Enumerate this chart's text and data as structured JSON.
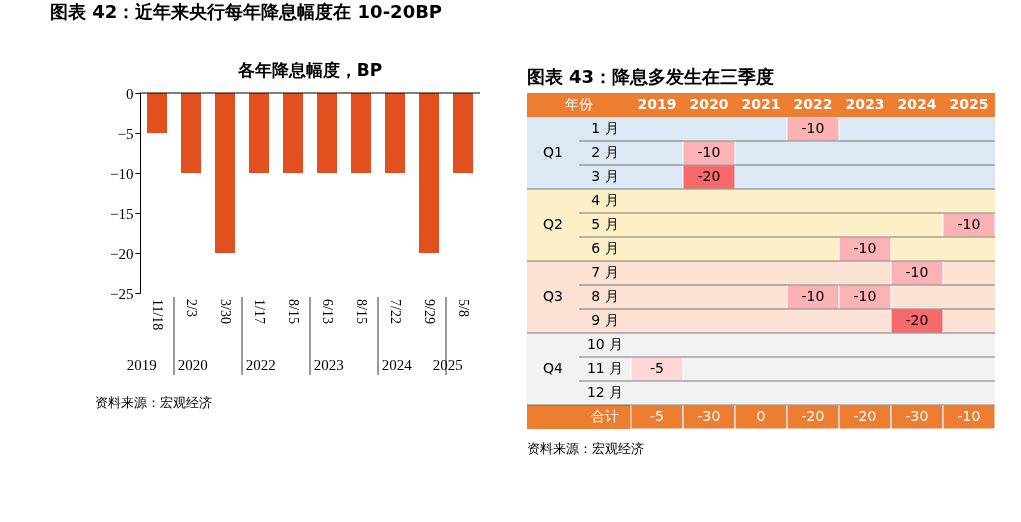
{
  "chart_data": [
    {
      "type": "bar",
      "title": "图表 42：近年来央行每年降息幅度在 10-20BP",
      "subtitle": "各年降息幅度，BP",
      "categories": [
        "11/18",
        "2/3",
        "3/30",
        "1/17",
        "8/15",
        "6/13",
        "8/15",
        "7/22",
        "9/29",
        "5/8"
      ],
      "values": [
        -5,
        -10,
        -20,
        -10,
        -10,
        -10,
        -10,
        -10,
        -20,
        -10
      ],
      "color": "#e2501f",
      "ylim": [
        -25,
        0
      ],
      "yticks": [
        0,
        -5,
        -10,
        -15,
        -20,
        -25
      ],
      "grid": false,
      "annotations": [
        "2019",
        "2020",
        "2022",
        "2023",
        "2024",
        "2025",
        "资料来源：宏观经济"
      ]
    },
    {
      "type": "heatmap",
      "title": "图表 43：降息多发生在三季度",
      "xlabel": "年份",
      "categories": [
        "2019",
        "2020",
        "2021",
        "2022",
        "2023",
        "2024",
        "2025"
      ],
      "y_categories": [
        "1 月",
        "2 月",
        "3 月",
        "4 月",
        "5 月",
        "6 月",
        "7 月",
        "8 月",
        "9 月",
        "10 月",
        "11 月",
        "12 月",
        "合计"
      ],
      "cells": [
        [
          null,
          null,
          null,
          -10,
          null,
          null,
          null
        ],
        [
          null,
          -10,
          null,
          null,
          null,
          null,
          null
        ],
        [
          null,
          -20,
          null,
          null,
          null,
          null,
          null
        ],
        [
          null,
          null,
          null,
          null,
          null,
          null,
          null
        ],
        [
          null,
          null,
          null,
          null,
          null,
          null,
          -10
        ],
        [
          null,
          null,
          null,
          null,
          -10,
          null,
          null
        ],
        [
          null,
          null,
          null,
          null,
          null,
          -10,
          null
        ],
        [
          null,
          null,
          null,
          -10,
          -10,
          null,
          null
        ],
        [
          null,
          null,
          null,
          null,
          null,
          -20,
          null
        ],
        [
          null,
          null,
          null,
          null,
          null,
          null,
          null
        ],
        [
          -5,
          null,
          null,
          null,
          null,
          null,
          null
        ],
        [
          null,
          null,
          null,
          null,
          null,
          null,
          null
        ],
        [
          -5,
          -30,
          0,
          -20,
          -20,
          -30,
          -10
        ]
      ],
      "data_labels": true,
      "bands": [
        {
          "axis": "y",
          "from": "1 月",
          "to": "3 月",
          "label": "Q1",
          "color": "#dce9f5"
        },
        {
          "axis": "y",
          "from": "4 月",
          "to": "6 月",
          "label": "Q2",
          "color": "#fdf0c9"
        },
        {
          "axis": "y",
          "from": "7 月",
          "to": "9 月",
          "label": "Q3",
          "color": "#fbe2d4"
        },
        {
          "axis": "y",
          "from": "10 月",
          "to": "12 月",
          "label": "Q4",
          "color": "#f2f2f2"
        }
      ],
      "annotations": [
        "资料来源：宏观经济"
      ]
    }
  ]
}
